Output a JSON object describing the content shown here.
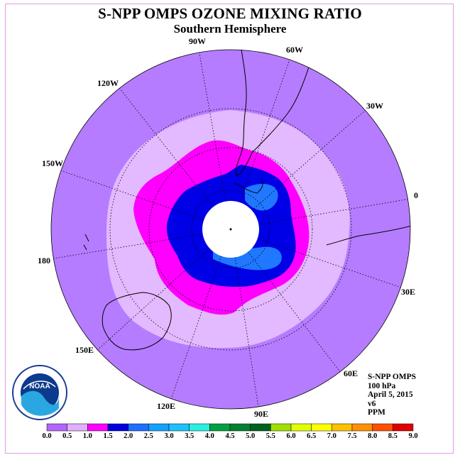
{
  "title": "S-NPP OMPS OZONE MIXING RATIO",
  "subtitle": "Southern Hemisphere",
  "longitude_labels": [
    "90W",
    "60W",
    "30W",
    "0",
    "30E",
    "60E",
    "90E",
    "120E",
    "150E",
    "180",
    "150W",
    "120W"
  ],
  "info": {
    "instrument": "S-NPP OMPS",
    "level": "100 hPa",
    "date": "April 5, 2015",
    "version": "v6",
    "units": "PPM"
  },
  "logo_text": "NOAA",
  "colorbar": {
    "ticks": [
      "0.0",
      "0.5",
      "1.0",
      "1.5",
      "2.0",
      "2.5",
      "3.0",
      "3.5",
      "4.0",
      "4.5",
      "5.0",
      "5.5",
      "6.0",
      "6.5",
      "7.0",
      "7.5",
      "8.0",
      "8.5",
      "9.0"
    ],
    "colors": [
      "#b266ff",
      "#e0b0ff",
      "#ff00ff",
      "#0000e0",
      "#1e6fff",
      "#14a0ff",
      "#20c0ff",
      "#28f0e0",
      "#00a040",
      "#008030",
      "#006020",
      "#a0e000",
      "#e0ff00",
      "#ffff00",
      "#ffc000",
      "#ff9000",
      "#ff5000",
      "#e00000",
      "#905030"
    ]
  }
}
